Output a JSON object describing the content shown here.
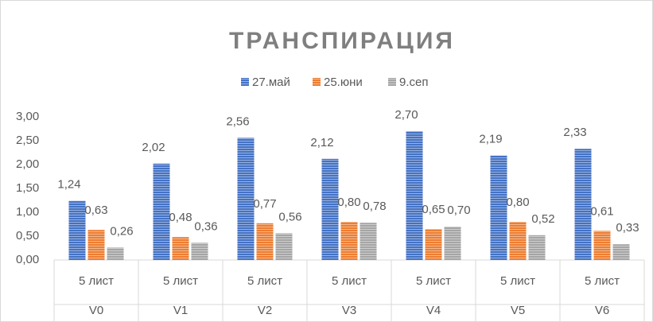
{
  "chart_data": {
    "type": "bar",
    "title": "ТРАНСПИРАЦИЯ",
    "categories": [
      "V0",
      "V1",
      "V2",
      "V3",
      "V4",
      "V5",
      "V6"
    ],
    "subcategories": [
      "5 лист",
      "5 лист",
      "5 лист",
      "5 лист",
      "5 лист",
      "5 лист",
      "5 лист"
    ],
    "series": [
      {
        "name": "27.май",
        "color": "#4472c4",
        "values": [
          1.24,
          2.02,
          2.56,
          2.12,
          2.7,
          2.19,
          2.33
        ],
        "value_labels": [
          "1,24",
          "2,02",
          "2,56",
          "2,12",
          "2,70",
          "2,19",
          "2,33"
        ]
      },
      {
        "name": "25.юни",
        "color": "#ed7d31",
        "values": [
          0.63,
          0.48,
          0.77,
          0.8,
          0.65,
          0.8,
          0.61
        ],
        "value_labels": [
          "0,63",
          "0,48",
          "0,77",
          "0,80",
          "0,65",
          "0,80",
          "0,61"
        ]
      },
      {
        "name": "9.сеп",
        "color": "#a5a5a5",
        "values": [
          0.26,
          0.36,
          0.56,
          0.78,
          0.7,
          0.52,
          0.33
        ],
        "value_labels": [
          "0,26",
          "0,36",
          "0,56",
          "0,78",
          "0,70",
          "0,52",
          "0,33"
        ]
      }
    ],
    "ylim": [
      0,
      3
    ],
    "yticks": [
      {
        "value": 0,
        "label": "0,00"
      },
      {
        "value": 0.5,
        "label": "0,50"
      },
      {
        "value": 1,
        "label": "1,00"
      },
      {
        "value": 1.5,
        "label": "1,50"
      },
      {
        "value": 2,
        "label": "2,00"
      },
      {
        "value": 2.5,
        "label": "2,50"
      },
      {
        "value": 3,
        "label": "3,00"
      }
    ],
    "legend": "top",
    "grid": false
  }
}
